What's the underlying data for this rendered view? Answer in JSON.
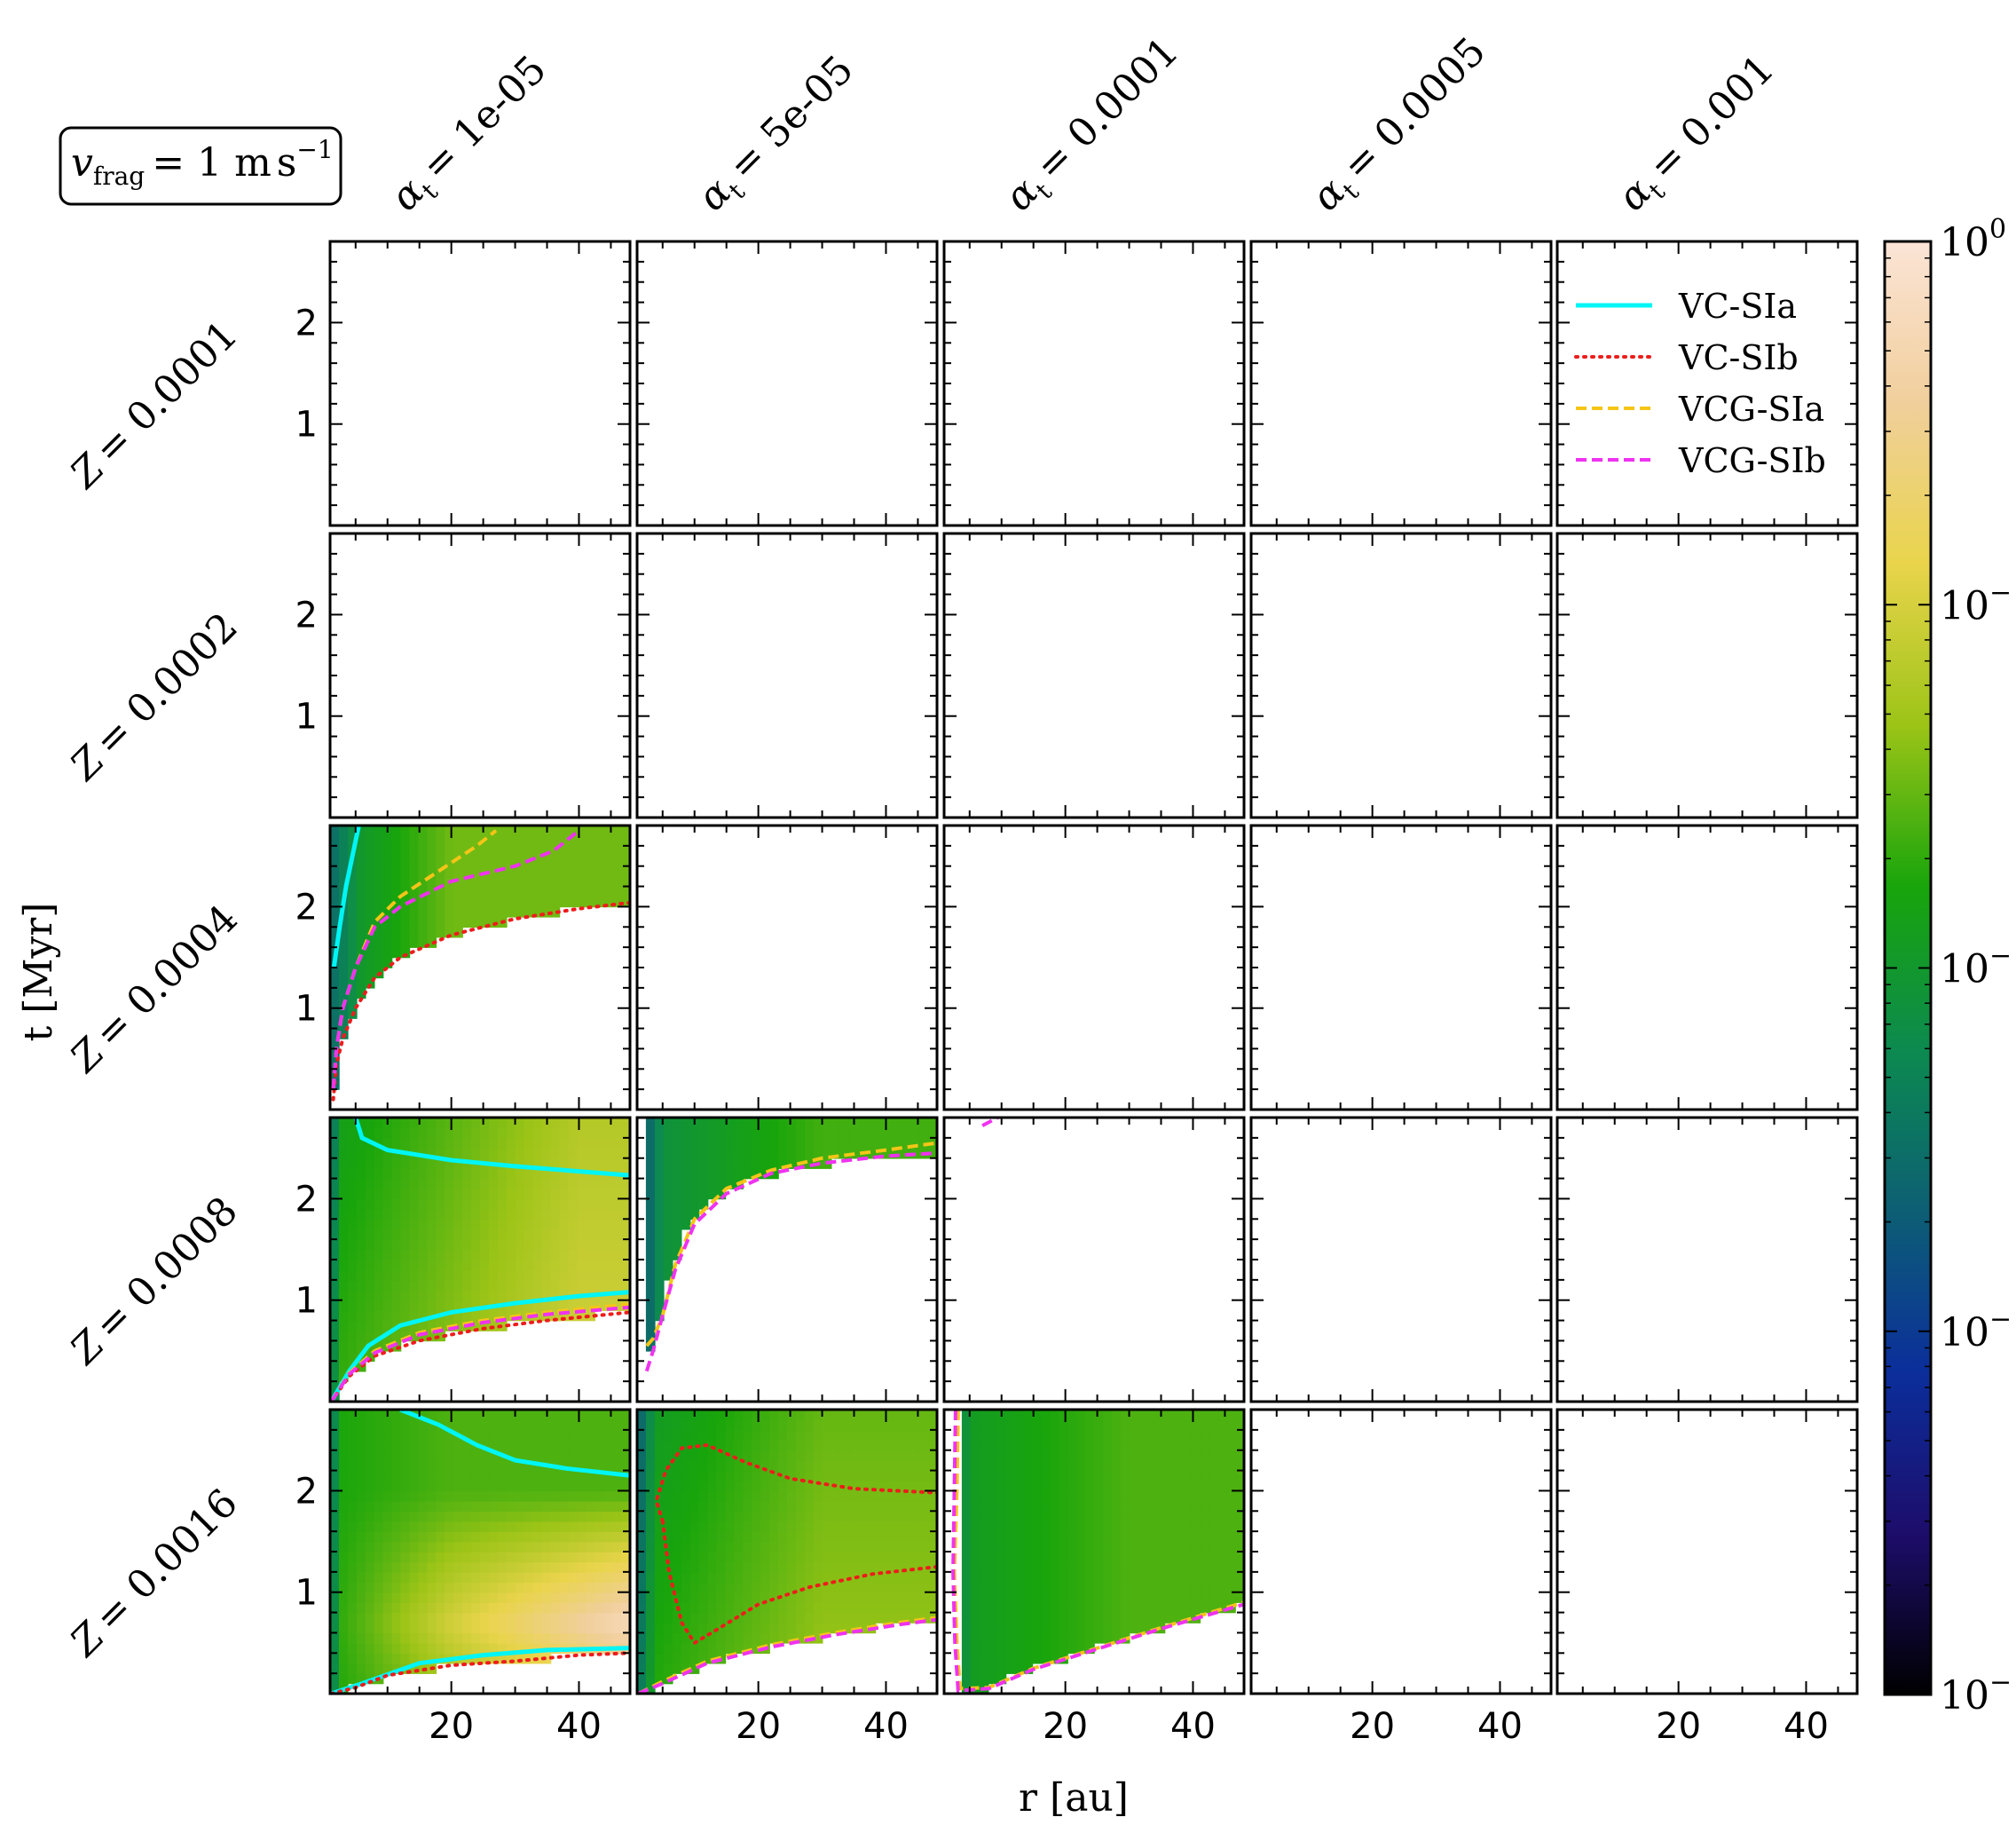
{
  "chart_data": {
    "type": "heatmap",
    "title": "",
    "annotation_box": "v_frag = 1 m s⁻¹",
    "annotation_box_parts": {
      "symbol": "v",
      "subscript": "frag",
      "equals": "= 1 m",
      "unit": "s",
      "exponent": "−1"
    },
    "column_headers": [
      "α_t = 1e-05",
      "α_t = 5e-05",
      "α_t = 0.0001",
      "α_t = 0.0005",
      "α_t = 0.001"
    ],
    "column_header_parts": [
      {
        "sym": "α",
        "sub": "t",
        "val": "= 1e-05"
      },
      {
        "sym": "α",
        "sub": "t",
        "val": "= 5e-05"
      },
      {
        "sym": "α",
        "sub": "t",
        "val": "= 0.0001"
      },
      {
        "sym": "α",
        "sub": "t",
        "val": "= 0.0005"
      },
      {
        "sym": "α",
        "sub": "t",
        "val": "= 0.001"
      }
    ],
    "row_headers": [
      "Z = 0.0001",
      "Z = 0.0002",
      "Z = 0.0004",
      "Z = 0.0008",
      "Z = 0.0016"
    ],
    "xlabel": "r [au]",
    "ylabel": "t [Myr]",
    "xlim": [
      1,
      48
    ],
    "ylim": [
      0,
      2.8
    ],
    "x_ticks": [
      20,
      40
    ],
    "y_ticks": [
      1,
      2
    ],
    "colorbar": {
      "scale": "log",
      "tick_labels": [
        "10⁰",
        "10⁻",
        "10⁻",
        "10⁻",
        "10⁻"
      ],
      "tick_label_parts": [
        {
          "base": "10",
          "exp": "0"
        },
        {
          "base": "10",
          "exp": "−"
        },
        {
          "base": "10",
          "exp": "−"
        },
        {
          "base": "10",
          "exp": "−"
        },
        {
          "base": "10",
          "exp": "−"
        }
      ],
      "colors": [
        "#fbe4d6",
        "#f1cf9c",
        "#e9d44b",
        "#9cc417",
        "#18a50b",
        "#0c8a4f",
        "#0d5f74",
        "#0b2e9b",
        "#1d0d6b",
        "#000000"
      ]
    },
    "legend": {
      "placement": "top-right panel",
      "entries": [
        {
          "label": "VC-SIa",
          "color": "#00f5f5",
          "style": "solid"
        },
        {
          "label": "VC-SIb",
          "color": "#ee1c1c",
          "style": "dotted"
        },
        {
          "label": "VCG-SIa",
          "color": "#f5c518",
          "style": "dashed"
        },
        {
          "label": "VCG-SIb",
          "color": "#f032f0",
          "style": "dashed"
        }
      ]
    },
    "panels": [
      {
        "row": 2,
        "col": 0,
        "boundary": [
          [
            1.5,
            0.1
          ],
          [
            2,
            0.45
          ],
          [
            3,
            0.7
          ],
          [
            5,
            1.0
          ],
          [
            8,
            1.3
          ],
          [
            12,
            1.5
          ],
          [
            20,
            1.72
          ],
          [
            30,
            1.88
          ],
          [
            40,
            1.98
          ],
          [
            48,
            2.04
          ]
        ],
        "lines": {
          "VC-SIa": [
            [
              1.6,
              1.4
            ],
            [
              2.5,
              1.8
            ],
            [
              3.5,
              2.2
            ],
            [
              4.5,
              2.5
            ],
            [
              5.5,
              2.8
            ]
          ],
          "VC-SIb": [
            [
              1.5,
              0.1
            ],
            [
              2,
              0.45
            ],
            [
              3,
              0.7
            ],
            [
              5,
              1.0
            ],
            [
              8,
              1.3
            ],
            [
              12,
              1.5
            ],
            [
              20,
              1.72
            ],
            [
              30,
              1.88
            ],
            [
              40,
              1.98
            ],
            [
              48,
              2.04
            ]
          ],
          "VCG-SIa": [
            [
              1.5,
              0.2
            ],
            [
              2,
              0.6
            ],
            [
              3,
              1.0
            ],
            [
              5,
              1.4
            ],
            [
              8,
              1.85
            ],
            [
              12,
              2.1
            ],
            [
              18,
              2.35
            ],
            [
              24,
              2.6
            ],
            [
              27,
              2.75
            ]
          ],
          "VCG-SIb": [
            [
              1.5,
              0.2
            ],
            [
              2,
              0.6
            ],
            [
              3,
              1.0
            ],
            [
              5,
              1.4
            ],
            [
              8,
              1.8
            ],
            [
              12,
              2.0
            ],
            [
              20,
              2.25
            ],
            [
              30,
              2.4
            ],
            [
              36,
              2.55
            ],
            [
              40,
              2.75
            ]
          ]
        }
      },
      {
        "row": 3,
        "col": 0,
        "boundary": [
          [
            1.2,
            0.0
          ],
          [
            4,
            0.25
          ],
          [
            8,
            0.45
          ],
          [
            15,
            0.6
          ],
          [
            25,
            0.72
          ],
          [
            35,
            0.8
          ],
          [
            48,
            0.88
          ]
        ],
        "lines": {
          "VC-SIa": [
            [
              1.2,
              0.0
            ],
            [
              4,
              0.3
            ],
            [
              7,
              0.55
            ],
            [
              12,
              0.75
            ],
            [
              20,
              0.88
            ],
            [
              30,
              0.97
            ],
            [
              40,
              1.04
            ],
            [
              48,
              1.08
            ],
            [],
            [
              5,
              2.8
            ],
            [
              6,
              2.6
            ],
            [
              10,
              2.48
            ],
            [
              20,
              2.38
            ],
            [
              30,
              2.32
            ],
            [
              40,
              2.27
            ],
            [
              48,
              2.23
            ]
          ],
          "VC-SIb": [
            [
              1.2,
              0.0
            ],
            [
              4,
              0.25
            ],
            [
              8,
              0.45
            ],
            [
              15,
              0.6
            ],
            [
              25,
              0.72
            ],
            [
              35,
              0.8
            ],
            [
              48,
              0.88
            ]
          ],
          "VCG-SIa": [
            [
              1.2,
              0.0
            ],
            [
              4,
              0.28
            ],
            [
              8,
              0.5
            ],
            [
              15,
              0.68
            ],
            [
              25,
              0.8
            ],
            [
              35,
              0.88
            ],
            [
              48,
              0.96
            ]
          ],
          "VCG-SIb": [
            [
              1.2,
              0.0
            ],
            [
              4,
              0.27
            ],
            [
              8,
              0.48
            ],
            [
              15,
              0.66
            ],
            [
              25,
              0.78
            ],
            [
              35,
              0.86
            ],
            [
              48,
              0.93
            ]
          ]
        }
      },
      {
        "row": 3,
        "col": 1,
        "boundary": [
          [
            2.5,
            0.35
          ],
          [
            4,
            0.7
          ],
          [
            6,
            1.2
          ],
          [
            8,
            1.6
          ],
          [
            12,
            1.95
          ],
          [
            18,
            2.15
          ],
          [
            25,
            2.28
          ],
          [
            35,
            2.38
          ],
          [
            48,
            2.42
          ]
        ],
        "lines": {
          "VCG-SIa": [
            [
              2.5,
              0.55
            ],
            [
              3.5,
              0.62
            ],
            [
              5,
              0.85
            ],
            [
              7,
              1.35
            ],
            [
              10,
              1.8
            ],
            [
              15,
              2.1
            ],
            [
              22,
              2.28
            ],
            [
              30,
              2.4
            ],
            [
              40,
              2.48
            ],
            [
              48,
              2.55
            ]
          ],
          "VCG-SIb": [
            [
              2.5,
              0.3
            ],
            [
              3.5,
              0.5
            ],
            [
              5,
              0.85
            ],
            [
              7,
              1.3
            ],
            [
              10,
              1.75
            ],
            [
              15,
              2.05
            ],
            [
              22,
              2.25
            ],
            [
              30,
              2.35
            ],
            [
              40,
              2.42
            ],
            [
              48,
              2.45
            ]
          ]
        }
      },
      {
        "row": 3,
        "col": 2,
        "boundary": [],
        "lines": {
          "VCG-SIb": [
            [
              7,
              2.72
            ],
            [
              8.5,
              2.77
            ],
            [
              10,
              2.82
            ]
          ]
        }
      },
      {
        "row": 4,
        "col": 0,
        "boundary": [
          [
            1.2,
            0.0
          ],
          [
            5,
            0.06
          ],
          [
            10,
            0.18
          ],
          [
            20,
            0.28
          ],
          [
            30,
            0.32
          ],
          [
            40,
            0.38
          ],
          [
            48,
            0.4
          ]
        ],
        "lines": {
          "VC-SIa": [
            [
              1.2,
              0.0
            ],
            [
              6,
              0.1
            ],
            [
              15,
              0.3
            ],
            [
              25,
              0.38
            ],
            [
              35,
              0.43
            ],
            [
              48,
              0.45
            ],
            [],
            [
              12,
              2.8
            ],
            [
              18,
              2.65
            ],
            [
              24,
              2.45
            ],
            [
              30,
              2.3
            ],
            [
              38,
              2.22
            ],
            [
              48,
              2.15
            ]
          ],
          "VC-SIb": [
            [
              1.2,
              0.0
            ],
            [
              5,
              0.06
            ],
            [
              10,
              0.18
            ],
            [
              20,
              0.28
            ],
            [
              30,
              0.32
            ],
            [
              40,
              0.38
            ],
            [
              48,
              0.4
            ]
          ]
        }
      },
      {
        "row": 4,
        "col": 1,
        "boundary": [
          [
            1.2,
            0.0
          ],
          [
            5,
            0.1
          ],
          [
            12,
            0.3
          ],
          [
            22,
            0.45
          ],
          [
            32,
            0.58
          ],
          [
            42,
            0.68
          ],
          [
            48,
            0.72
          ]
        ],
        "lines": {
          "VC-SIb": [
            [
              5,
              1.7
            ],
            [
              4,
              1.9
            ],
            [
              5.5,
              2.2
            ],
            [
              8,
              2.42
            ],
            [
              12,
              2.45
            ],
            [
              18,
              2.28
            ],
            [
              25,
              2.12
            ],
            [
              35,
              2.02
            ],
            [
              48,
              1.98
            ],
            [],
            [
              5,
              1.7
            ],
            [
              6,
              1.2
            ],
            [
              8,
              0.7
            ],
            [
              10,
              0.5
            ],
            [
              14,
              0.65
            ],
            [
              20,
              0.88
            ],
            [
              28,
              1.05
            ],
            [
              38,
              1.18
            ],
            [
              48,
              1.25
            ]
          ],
          "VCG-SIa": [
            [
              1.2,
              0.0
            ],
            [
              5,
              0.12
            ],
            [
              12,
              0.32
            ],
            [
              22,
              0.48
            ],
            [
              32,
              0.6
            ],
            [
              42,
              0.7
            ],
            [
              48,
              0.75
            ]
          ],
          "VCG-SIb": [
            [
              1.2,
              0.0
            ],
            [
              5,
              0.1
            ],
            [
              12,
              0.3
            ],
            [
              22,
              0.46
            ],
            [
              32,
              0.58
            ],
            [
              42,
              0.68
            ],
            [
              48,
              0.73
            ]
          ]
        }
      },
      {
        "row": 4,
        "col": 2,
        "boundary": [
          [
            3.5,
            0.0
          ],
          [
            8,
            0.06
          ],
          [
            15,
            0.25
          ],
          [
            25,
            0.45
          ],
          [
            35,
            0.65
          ],
          [
            48,
            0.88
          ]
        ],
        "lines": {
          "VCG-SIa": [
            [
              3.2,
              2.8
            ],
            [
              3.0,
              2.0
            ],
            [
              2.6,
              1.2
            ],
            [
              3.0,
              0.5
            ],
            [
              3.5,
              0.05
            ],
            [
              8,
              0.06
            ],
            [
              15,
              0.25
            ],
            [
              25,
              0.45
            ],
            [
              35,
              0.65
            ],
            [
              48,
              0.9
            ]
          ],
          "VCG-SIb": [
            [
              2.8,
              2.8
            ],
            [
              2.6,
              2.0
            ],
            [
              2.4,
              1.2
            ],
            [
              2.7,
              0.5
            ],
            [
              3.2,
              0.03
            ],
            [
              8,
              0.05
            ],
            [
              15,
              0.24
            ],
            [
              25,
              0.44
            ],
            [
              35,
              0.64
            ],
            [
              48,
              0.88
            ]
          ]
        }
      }
    ]
  }
}
